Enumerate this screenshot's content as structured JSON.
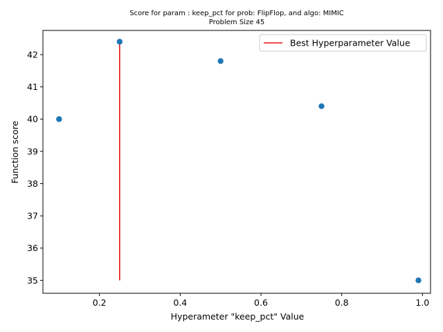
{
  "chart_data": {
    "type": "scatter",
    "title": "Score for param : keep_pct for prob: FlipFlop, and algo: MIMIC",
    "subtitle": "Problem Size 45",
    "xlabel": "Hyperameter \"keep_pct\" Value",
    "ylabel": "Function score",
    "xlim": [
      0.06,
      1.02
    ],
    "ylim": [
      34.6,
      42.75
    ],
    "xticks": [
      0.2,
      0.4,
      0.6,
      0.8,
      1.0
    ],
    "xtick_labels": [
      "0.2",
      "0.4",
      "0.6",
      "0.8",
      "1.0"
    ],
    "yticks": [
      35,
      36,
      37,
      38,
      39,
      40,
      41,
      42
    ],
    "ytick_labels": [
      "35",
      "36",
      "37",
      "38",
      "39",
      "40",
      "41",
      "42"
    ],
    "grid": false,
    "legend_position": "top-right",
    "series": [
      {
        "type": "scatter",
        "x": [
          0.1,
          0.25,
          0.5,
          0.75,
          0.99
        ],
        "y": [
          40.0,
          42.4,
          41.8,
          40.4,
          35.0
        ],
        "color": "#1f77b4"
      }
    ],
    "best_line": {
      "name": "Best Hyperparameter Value",
      "x": 0.25,
      "y_from": 35.0,
      "y_to": 42.4,
      "color": "#e8100e"
    }
  }
}
